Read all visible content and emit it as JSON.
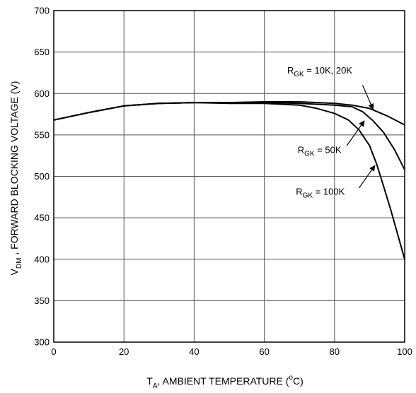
{
  "chart_data": {
    "type": "line",
    "xlabel_main": "T",
    "xlabel_sub": "A",
    "xlabel_rest": ", AMBIENT TEMPERATURE (",
    "xlabel_sup": "o",
    "xlabel_end": "C)",
    "ylabel_main": "V",
    "ylabel_sub": "DM",
    "ylabel_rest": " , FORWARD BLOCKING VOLTAGE (V)",
    "xlim": [
      0,
      100
    ],
    "ylim": [
      300,
      700
    ],
    "xticks": [
      0,
      20,
      40,
      60,
      80,
      100
    ],
    "yticks": [
      300,
      350,
      400,
      450,
      500,
      550,
      600,
      650,
      700
    ],
    "grid": true,
    "series": [
      {
        "name": "R_GK = 10K, 20K",
        "points": [
          [
            0,
            568
          ],
          [
            10,
            577
          ],
          [
            20,
            585
          ],
          [
            30,
            588
          ],
          [
            40,
            589
          ],
          [
            50,
            589
          ],
          [
            60,
            590
          ],
          [
            70,
            590
          ],
          [
            80,
            588
          ],
          [
            85,
            586
          ],
          [
            90,
            582
          ],
          [
            95,
            573
          ],
          [
            100,
            562
          ]
        ]
      },
      {
        "name": "R_GK = 50K",
        "points": [
          [
            0,
            568
          ],
          [
            10,
            577
          ],
          [
            20,
            585
          ],
          [
            30,
            588
          ],
          [
            40,
            589
          ],
          [
            50,
            589
          ],
          [
            60,
            589
          ],
          [
            70,
            588
          ],
          [
            80,
            586
          ],
          [
            85,
            584
          ],
          [
            88,
            578
          ],
          [
            91,
            567
          ],
          [
            94,
            553
          ],
          [
            97,
            533
          ],
          [
            100,
            508
          ]
        ]
      },
      {
        "name": "R_GK = 100K",
        "points": [
          [
            0,
            568
          ],
          [
            10,
            577
          ],
          [
            20,
            585
          ],
          [
            30,
            588
          ],
          [
            40,
            589
          ],
          [
            50,
            588
          ],
          [
            60,
            588
          ],
          [
            70,
            586
          ],
          [
            75,
            582
          ],
          [
            80,
            576
          ],
          [
            84,
            568
          ],
          [
            87,
            556
          ],
          [
            90,
            537
          ],
          [
            92,
            515
          ],
          [
            94,
            488
          ],
          [
            96,
            460
          ],
          [
            98,
            430
          ],
          [
            100,
            400
          ]
        ]
      }
    ],
    "annotations": [
      {
        "main": "R",
        "sub": "GK",
        "rest": " = 10K, 20K",
        "at": [
          66.5,
          624
        ],
        "arrow_from": [
          88,
          610
        ],
        "arrow_to": [
          91,
          581
        ]
      },
      {
        "main": "R",
        "sub": "GK",
        "rest": " = 50K",
        "at": [
          69.5,
          528
        ],
        "arrow_from": [
          83.5,
          537
        ],
        "arrow_to": [
          88.5,
          567
        ]
      },
      {
        "main": "R",
        "sub": "GK",
        "rest": " = 100K",
        "at": [
          69,
          478
        ],
        "arrow_from": [
          87,
          486
        ],
        "arrow_to": [
          91.5,
          513
        ]
      }
    ]
  }
}
